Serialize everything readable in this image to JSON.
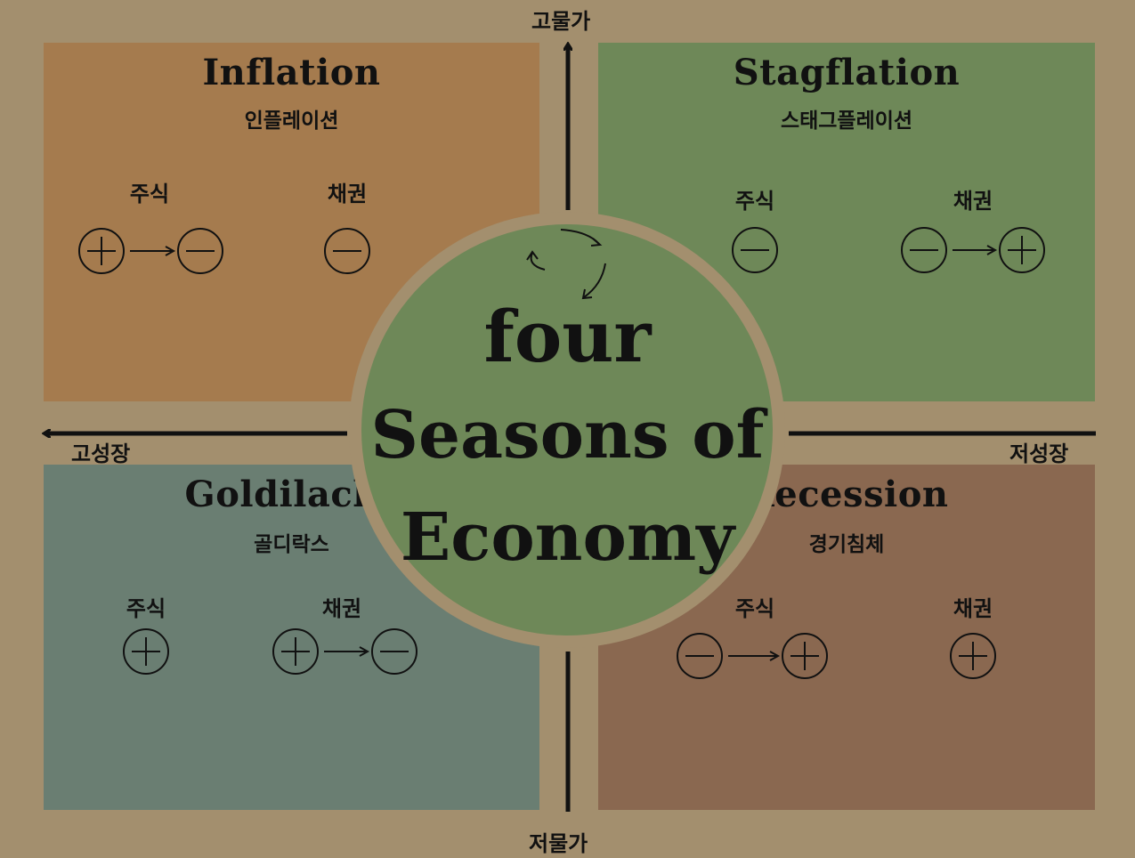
{
  "axes": {
    "top": "고물가",
    "bottom": "저물가",
    "left": "고성장",
    "right": "저성장"
  },
  "center": {
    "line1": "four",
    "line2": "Seasons of",
    "line3": "Economy"
  },
  "quadrants": {
    "inflation": {
      "title": "Inflation",
      "subtitle": "인플레이션",
      "stock_label": "주식",
      "bond_label": "채권",
      "stock_signs": [
        "+",
        "-"
      ],
      "bond_signs": [
        "-"
      ]
    },
    "stagflation": {
      "title": "Stagflation",
      "subtitle": "스태그플레이션",
      "stock_label": "주식",
      "bond_label": "채권",
      "stock_signs": [
        "-"
      ],
      "bond_signs": [
        "-",
        "+"
      ]
    },
    "goldilacks": {
      "title": "Goldilacks",
      "subtitle": "골디락스",
      "stock_label": "주식",
      "bond_label": "채권",
      "stock_signs": [
        "+"
      ],
      "bond_signs": [
        "+",
        "-"
      ]
    },
    "recession": {
      "title": "Recession",
      "subtitle": "경기침체",
      "stock_label": "주식",
      "bond_label": "채권",
      "stock_signs": [
        "-",
        "+"
      ],
      "bond_signs": [
        "+"
      ]
    }
  },
  "colors": {
    "background": "#a38f6e",
    "inflation": "#a57b4e",
    "stagflation": "#6e8858",
    "goldilacks": "#6a7e72",
    "recession": "#8a6850",
    "ink": "#111111"
  }
}
